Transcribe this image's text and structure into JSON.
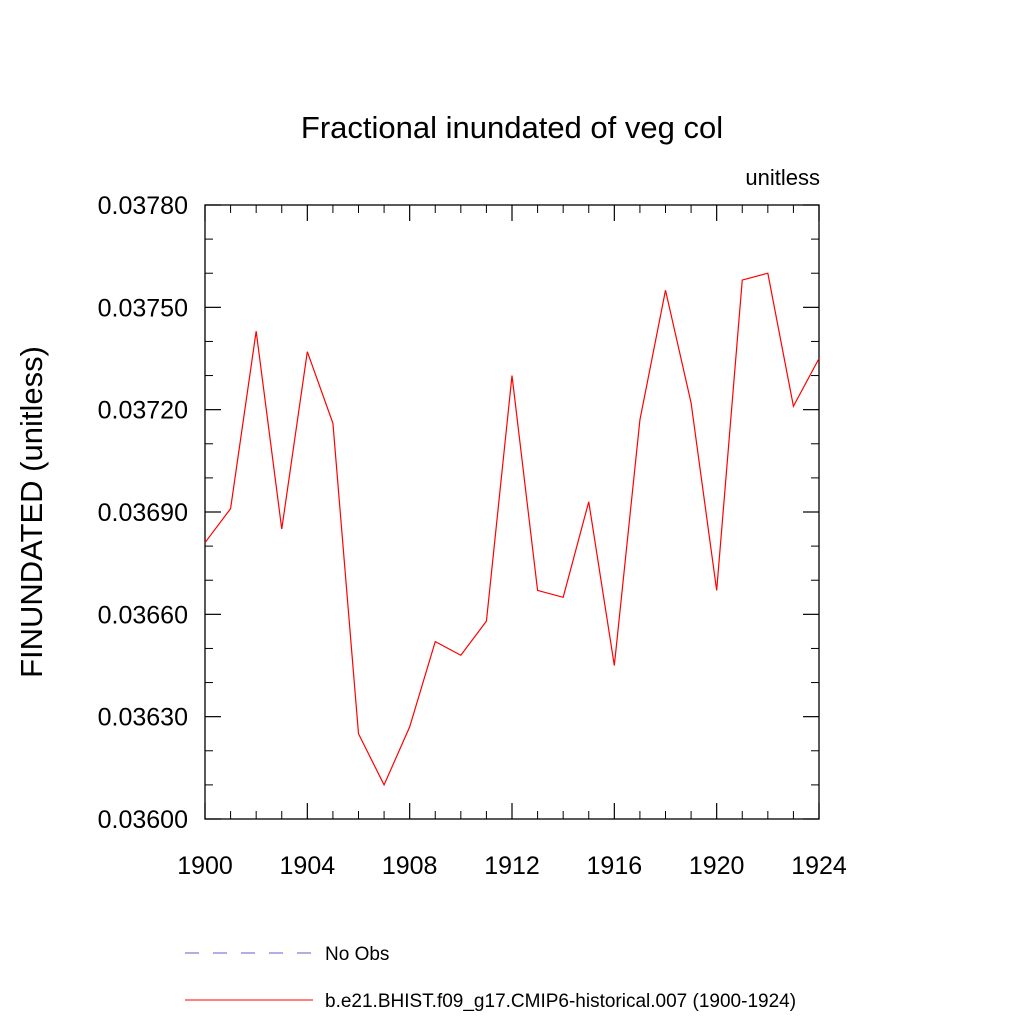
{
  "chart_data": {
    "type": "line",
    "title": "Fractional inundated of veg col",
    "units_label": "unitless",
    "xlabel": "",
    "ylabel": "FINUNDATED  (unitless)",
    "xlim": [
      1900,
      1924
    ],
    "ylim": [
      0.036,
      0.0378
    ],
    "x_ticks": [
      "1900",
      "1904",
      "1908",
      "1912",
      "1916",
      "1920",
      "1924"
    ],
    "y_ticks": [
      "0.03600",
      "0.03630",
      "0.03660",
      "0.03690",
      "0.03720",
      "0.03750",
      "0.03780"
    ],
    "grid": false,
    "legend_position": "bottom",
    "series": [
      {
        "name": "No Obs",
        "color": "#6a5acd",
        "dash": "dashed",
        "x": [],
        "values": []
      },
      {
        "name": "b.e21.BHIST.f09_g17.CMIP6-historical.007 (1900-1924)",
        "color": "#ff0000",
        "dash": "solid",
        "x": [
          1900,
          1901,
          1902,
          1903,
          1904,
          1905,
          1906,
          1907,
          1908,
          1909,
          1910,
          1911,
          1912,
          1913,
          1914,
          1915,
          1916,
          1917,
          1918,
          1919,
          1920,
          1921,
          1922,
          1923,
          1924
        ],
        "values": [
          0.03681,
          0.03691,
          0.03743,
          0.03685,
          0.03737,
          0.03716,
          0.03625,
          0.0361,
          0.03627,
          0.03652,
          0.03648,
          0.03658,
          0.0373,
          0.03667,
          0.03665,
          0.03693,
          0.03645,
          0.03717,
          0.03755,
          0.03722,
          0.03667,
          0.03758,
          0.0376,
          0.03721,
          0.03735
        ]
      }
    ]
  }
}
